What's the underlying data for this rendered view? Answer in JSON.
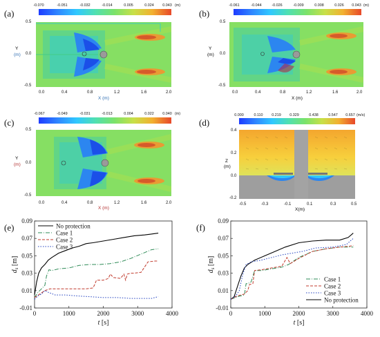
{
  "panels": {
    "a": {
      "label": "(a)",
      "cbar_ticks": [
        "-0.070",
        "-0.051",
        "-0.032",
        "-0.014",
        "0.005",
        "0.024",
        "0.043"
      ],
      "cbar_unit": "(m)",
      "ylabel": "Y",
      "yunit": "(m)",
      "xlabel": "X (m)",
      "yticks": [
        "0.5",
        "0.0",
        "-0.5"
      ],
      "xticks": [
        "0.0",
        "0.4",
        "0.8",
        "1.2",
        "1.6",
        "2.0"
      ]
    },
    "b": {
      "label": "(b)",
      "cbar_ticks": [
        "-0.061",
        "-0.044",
        "-0.026",
        "-0.009",
        "0.008",
        "0.026",
        "0.043"
      ],
      "cbar_unit": "(m)",
      "ylabel": "Y",
      "yunit": "(m)",
      "xlabel": "X (m)",
      "yticks": [
        "0.5",
        "0.0",
        "-0.5"
      ],
      "xticks": [
        "0.0",
        "0.4",
        "0.8",
        "1.2",
        "1.6",
        "2.0"
      ]
    },
    "c": {
      "label": "(c)",
      "cbar_ticks": [
        "-0.067",
        "-0.049",
        "-0.031",
        "-0.013",
        "0.004",
        "0.022",
        "0.040"
      ],
      "cbar_unit": "(m)",
      "ylabel": "Y",
      "yunit": "(m)",
      "xlabel": "X (m)",
      "yticks": [
        "0.5",
        "0.0",
        "-0.5"
      ],
      "xticks": [
        "0.0",
        "0.4",
        "0.8",
        "1.2",
        "1.6",
        "2.0"
      ]
    },
    "d": {
      "label": "(d)",
      "cbar_ticks": [
        "0.000",
        "0.110",
        "0.219",
        "0.329",
        "0.438",
        "0.547",
        "0.657"
      ],
      "cbar_unit": "(m/s)",
      "ylabel": "Z",
      "yunit": "(m)",
      "xlabel": "X(m)",
      "yticks": [
        "0.4",
        "0.2",
        "0.0",
        "-0.2"
      ],
      "xticks": [
        "-0.5",
        "-0.3",
        "-0.1",
        "0.1",
        "0.3",
        "0.5"
      ]
    }
  },
  "colors": {
    "grey": "#9a9a9a",
    "green": "#6ed26a",
    "blue": "#3a76e0",
    "orange": "#e59a2a"
  },
  "chart_data": [
    {
      "panel": "(e)",
      "type": "line",
      "xlabel": "t [s]",
      "ylabel": "d_s [m]",
      "xlim": [
        0,
        4000
      ],
      "ylim": [
        -0.01,
        0.09
      ],
      "xticks": [
        "0",
        "1000",
        "2000",
        "3000",
        "4000"
      ],
      "yticks": [
        "-0.01",
        "0.01",
        "0.03",
        "0.05",
        "0.07",
        "0.09"
      ],
      "legend": "top-left",
      "legend_labels": [
        "No protection",
        "Case 1",
        "Case 2",
        "Case 3"
      ],
      "series": [
        {
          "name": "No protection",
          "color": "#000000",
          "dash": "",
          "x": [
            0,
            60,
            120,
            200,
            300,
            400,
            500,
            700,
            900,
            1100,
            1300,
            1500,
            1700,
            2000,
            2300,
            2600,
            2900,
            3200,
            3400,
            3600
          ],
          "y": [
            0.005,
            0.02,
            0.03,
            0.036,
            0.04,
            0.045,
            0.048,
            0.053,
            0.056,
            0.059,
            0.061,
            0.064,
            0.065,
            0.067,
            0.069,
            0.071,
            0.073,
            0.074,
            0.075,
            0.076
          ]
        },
        {
          "name": "Case 1",
          "color": "#2e8b57",
          "dash": "6 2 1 2",
          "x": [
            0,
            100,
            200,
            300,
            350,
            420,
            500,
            700,
            1000,
            1300,
            1600,
            1900,
            2200,
            2500,
            2800,
            3100,
            3400,
            3600
          ],
          "y": [
            0.002,
            0.008,
            0.012,
            0.016,
            0.027,
            0.034,
            0.033,
            0.035,
            0.036,
            0.039,
            0.04,
            0.04,
            0.041,
            0.043,
            0.047,
            0.052,
            0.057,
            0.058
          ]
        },
        {
          "name": "Case 2",
          "color": "#c0392b",
          "dash": "4 2",
          "x": [
            0,
            150,
            300,
            450,
            600,
            900,
            1200,
            1500,
            1700,
            1750,
            1800,
            2000,
            2150,
            2200,
            2300,
            2500,
            2600,
            2650,
            2700,
            2800,
            2900,
            3100,
            3300,
            3500,
            3600
          ],
          "y": [
            0.002,
            0.006,
            0.01,
            0.012,
            0.012,
            0.012,
            0.012,
            0.012,
            0.013,
            0.017,
            0.022,
            0.022,
            0.024,
            0.029,
            0.025,
            0.024,
            0.029,
            0.022,
            0.029,
            0.03,
            0.03,
            0.031,
            0.043,
            0.044,
            0.044
          ]
        },
        {
          "name": "Case 3",
          "color": "#1f3fbf",
          "dash": "1.5 2",
          "x": [
            0,
            100,
            200,
            300,
            400,
            600,
            900,
            1200,
            1600,
            2000,
            2400,
            2800,
            3200,
            3400,
            3600
          ],
          "y": [
            0.0,
            0.004,
            0.006,
            0.01,
            0.008,
            0.005,
            0.005,
            0.004,
            0.003,
            0.002,
            0.002,
            0.001,
            0.001,
            0.001,
            0.003
          ]
        }
      ]
    },
    {
      "panel": "(f)",
      "type": "line",
      "xlabel": "t [s]",
      "ylabel": "d_s [m]",
      "xlim": [
        0,
        4000
      ],
      "ylim": [
        -0.01,
        0.09
      ],
      "xticks": [
        "0",
        "1000",
        "2000",
        "3000",
        "4000"
      ],
      "yticks": [
        "-0.01",
        "0.01",
        "0.03",
        "0.05",
        "0.07",
        "0.09"
      ],
      "legend": "bottom-right",
      "legend_labels": [
        "Case 1",
        "Case 2",
        "Case 3",
        "No protection"
      ],
      "series": [
        {
          "name": "No protection",
          "color": "#000000",
          "dash": "",
          "x": [
            0,
            100,
            200,
            300,
            400,
            500,
            700,
            1000,
            1300,
            1600,
            2000,
            2400,
            2800,
            3200,
            3450,
            3600
          ],
          "y": [
            0.0,
            0.003,
            0.015,
            0.027,
            0.036,
            0.04,
            0.045,
            0.05,
            0.055,
            0.06,
            0.065,
            0.067,
            0.068,
            0.068,
            0.071,
            0.076
          ]
        },
        {
          "name": "Case 1",
          "color": "#2e8b57",
          "dash": "6 2 1 2",
          "x": [
            0,
            200,
            400,
            450,
            500,
            600,
            700,
            900,
            1200,
            1500,
            1700,
            2000,
            2400,
            2800,
            3200,
            3500,
            3600
          ],
          "y": [
            0.0,
            0.003,
            0.005,
            0.018,
            0.018,
            0.02,
            0.033,
            0.033,
            0.035,
            0.037,
            0.04,
            0.048,
            0.055,
            0.058,
            0.06,
            0.06,
            0.06
          ]
        },
        {
          "name": "Case 2",
          "color": "#c0392b",
          "dash": "4 2",
          "x": [
            0,
            200,
            400,
            500,
            550,
            650,
            700,
            900,
            1200,
            1500,
            1650,
            1750,
            2000,
            2400,
            2800,
            3200,
            3500,
            3600
          ],
          "y": [
            0.0,
            0.004,
            0.006,
            0.01,
            0.017,
            0.018,
            0.033,
            0.034,
            0.036,
            0.038,
            0.048,
            0.041,
            0.047,
            0.055,
            0.058,
            0.06,
            0.061,
            0.062
          ]
        },
        {
          "name": "Case 3",
          "color": "#1f3fbf",
          "dash": "1.5 2",
          "x": [
            0,
            150,
            250,
            350,
            450,
            600,
            900,
            1200,
            1500,
            1800,
            2100,
            2500,
            3000,
            3400,
            3600
          ],
          "y": [
            0.0,
            0.004,
            0.01,
            0.028,
            0.04,
            0.043,
            0.045,
            0.048,
            0.051,
            0.053,
            0.055,
            0.059,
            0.06,
            0.063,
            0.07
          ]
        }
      ]
    }
  ]
}
